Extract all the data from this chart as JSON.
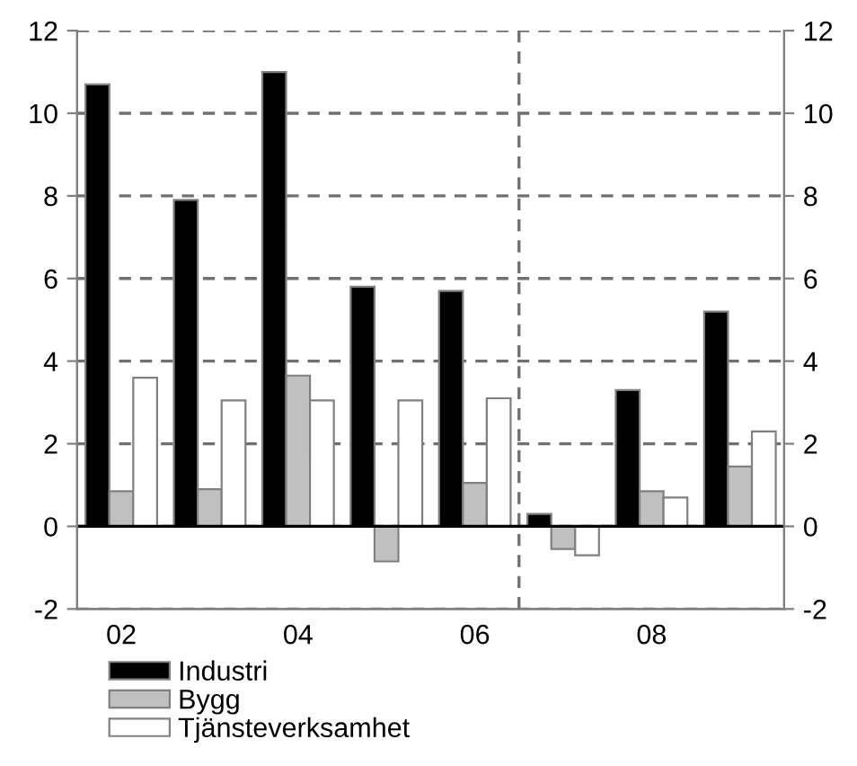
{
  "chart_data": {
    "type": "bar",
    "categories": [
      "02",
      null,
      "04",
      null,
      "06",
      null,
      "08",
      null
    ],
    "series": [
      {
        "name": "Industri",
        "color": "#000000",
        "values": [
          10.7,
          7.9,
          11.0,
          5.8,
          5.7,
          0.3,
          3.3,
          5.2
        ]
      },
      {
        "name": "Bygg",
        "color": "#c0c0c0",
        "values": [
          0.85,
          0.9,
          3.65,
          -0.85,
          1.05,
          -0.55,
          0.85,
          1.45
        ]
      },
      {
        "name": "Tjänsteverksamhet",
        "color": "#ffffff",
        "values": [
          3.6,
          3.05,
          3.05,
          3.05,
          3.1,
          -0.7,
          0.7,
          2.3
        ]
      }
    ],
    "ylim": [
      -2,
      12
    ],
    "yticks": [
      -2,
      0,
      2,
      4,
      6,
      8,
      10,
      12
    ],
    "y2lim": [
      -2,
      12
    ],
    "y2ticks": [
      -2,
      0,
      2,
      4,
      6,
      8,
      10,
      12
    ],
    "grid": "y",
    "legend": "bottom"
  }
}
